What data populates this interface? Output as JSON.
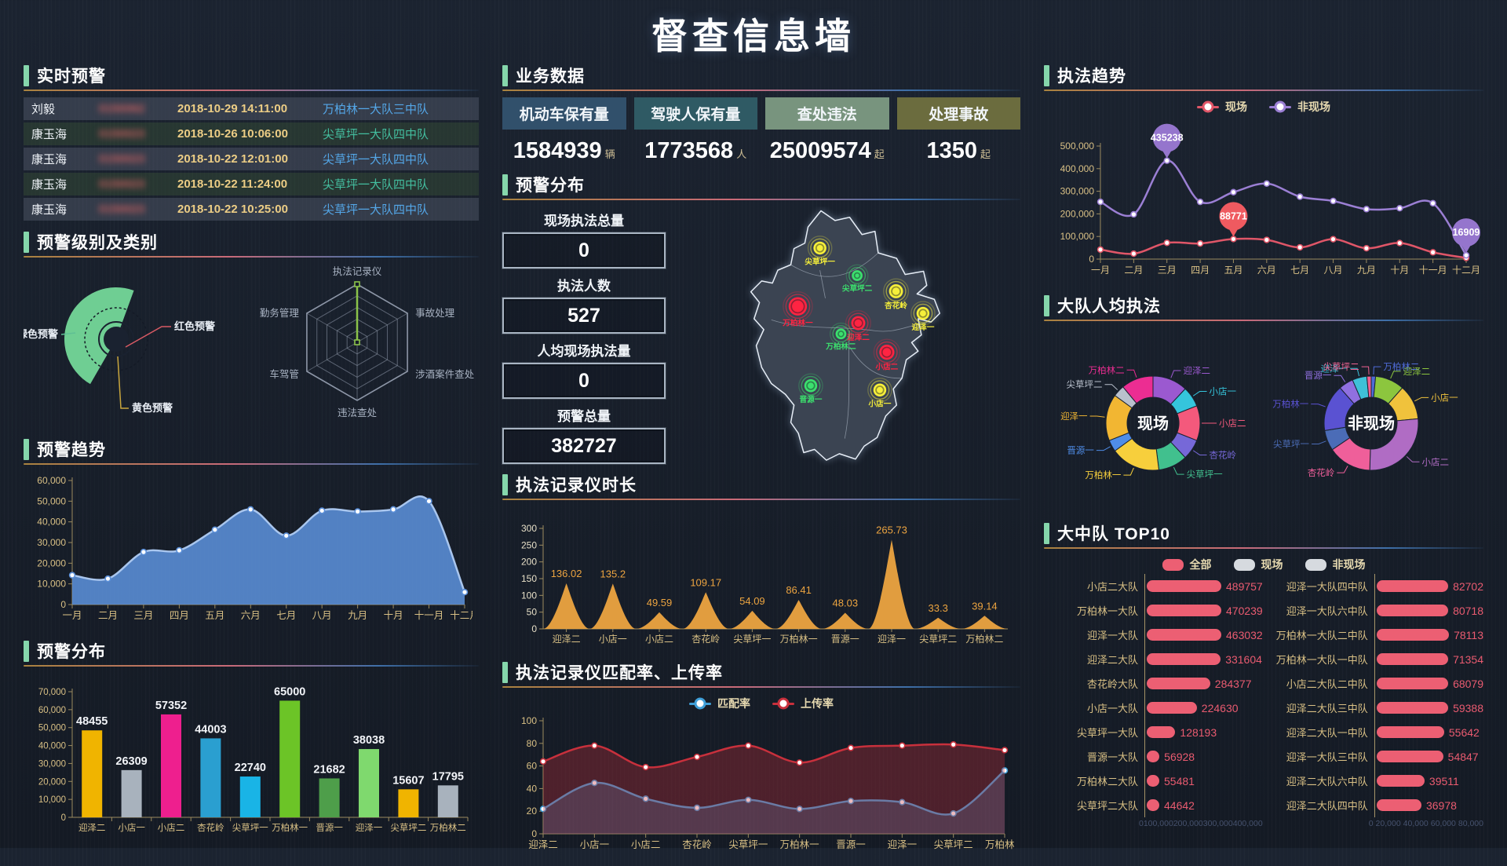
{
  "title": "督查信息墙",
  "realtime": {
    "title": "实时预警",
    "rows": [
      {
        "name": "刘毅",
        "id": "0150062",
        "time": "2018-10-29 14:11:00",
        "dept": "万柏林一大队三中队",
        "dept_color": "#54a7e8"
      },
      {
        "name": "康玉海",
        "id": "0150023",
        "time": "2018-10-26 10:06:00",
        "dept": "尖草坪一大队四中队",
        "dept_color": "#44bfa0"
      },
      {
        "name": "康玉海",
        "id": "0150023",
        "time": "2018-10-22 12:01:00",
        "dept": "尖草坪一大队四中队",
        "dept_color": "#54a7e8"
      },
      {
        "name": "康玉海",
        "id": "0150023",
        "time": "2018-10-22 11:24:00",
        "dept": "尖草坪一大队四中队",
        "dept_color": "#44bfa0"
      },
      {
        "name": "康玉海",
        "id": "0150023",
        "time": "2018-10-22 10:25:00",
        "dept": "尖草坪一大队四中队",
        "dept_color": "#54a7e8"
      }
    ]
  },
  "levels": {
    "title": "预警级别及类别"
  },
  "trend": {
    "title": "预警趋势"
  },
  "dist_bar": {
    "title": "预警分布"
  },
  "business": {
    "title": "业务数据",
    "cards": [
      {
        "label": "机动车保有量",
        "value": "1584939",
        "unit": "辆",
        "color": "#31506b"
      },
      {
        "label": "驾驶人保有量",
        "value": "1773568",
        "unit": "人",
        "color": "#2f5a64"
      },
      {
        "label": "查处违法",
        "value": "25009574",
        "unit": "起",
        "color": "#78947e"
      },
      {
        "label": "处理事故",
        "value": "1350",
        "unit": "起",
        "color": "#6b6c3e"
      }
    ]
  },
  "map_panel": {
    "title": "预警分布",
    "stats": [
      {
        "label": "现场执法总量",
        "value": "0"
      },
      {
        "label": "执法人数",
        "value": "527"
      },
      {
        "label": "人均现场执法量",
        "value": "0"
      },
      {
        "label": "预警总量",
        "value": "382727"
      }
    ],
    "markers": [
      {
        "label": "尖草坪一",
        "x": 150,
        "y": 77,
        "r": 12,
        "color": "#f6ef3a"
      },
      {
        "label": "尖草坪二",
        "x": 219,
        "y": 128,
        "r": 10,
        "color": "#3ce06e"
      },
      {
        "label": "杏花岭",
        "x": 291,
        "y": 157,
        "r": 13,
        "color": "#f6ef3a"
      },
      {
        "label": "迎泽一",
        "x": 341,
        "y": 198,
        "r": 12,
        "color": "#f6ef3a"
      },
      {
        "label": "万柏林一",
        "x": 109,
        "y": 185,
        "r": 17,
        "color": "#ff2442"
      },
      {
        "label": "迎泽二",
        "x": 221,
        "y": 216,
        "r": 13,
        "color": "#ff2442"
      },
      {
        "label": "万柏林二",
        "x": 189,
        "y": 236,
        "r": 10,
        "color": "#3ce06e"
      },
      {
        "label": "小店二",
        "x": 274,
        "y": 270,
        "r": 14,
        "color": "#ff2442"
      },
      {
        "label": "晋源一",
        "x": 133,
        "y": 332,
        "r": 12,
        "color": "#3ce06e"
      },
      {
        "label": "小店一",
        "x": 261,
        "y": 340,
        "r": 12,
        "color": "#f6ef3a"
      }
    ]
  },
  "recorder": {
    "title": "执法记录仪时长"
  },
  "rates": {
    "title": "执法记录仪匹配率、上传率"
  },
  "enforce": {
    "title": "执法趋势"
  },
  "per_capita": {
    "title": "大队人均执法"
  },
  "top10": {
    "title": "大中队 TOP10",
    "legend": [
      {
        "label": "全部",
        "color": "#ec5f73"
      },
      {
        "label": "现场",
        "color": "#d6dadf"
      },
      {
        "label": "非现场",
        "color": "#d6dadf"
      }
    ]
  },
  "chart_data": [
    {
      "id": "warning_level_pie",
      "type": "pie",
      "title": "预警级别",
      "slices": [
        {
          "label": "绿色预警",
          "value": 97,
          "color": "#6fce93",
          "leader": "#5fbf95"
        },
        {
          "label": "红色预警",
          "value": 1,
          "color": "#e05b66",
          "leader": "#d85a64"
        },
        {
          "label": "黄色预警",
          "value": 2,
          "color": "#d8b23c",
          "leader": "#c9a63d"
        }
      ]
    },
    {
      "id": "warning_radar",
      "type": "radar",
      "levels": 5,
      "categories": [
        "执法记录仪",
        "事故处理",
        "涉酒案件查处",
        "违法查处",
        "车驾管",
        "勤务管理"
      ],
      "series": [
        {
          "name": "预警类别",
          "values": [
            5,
            0,
            0,
            0,
            0,
            0
          ],
          "color": "#8bc34a"
        }
      ]
    },
    {
      "id": "warning_trend",
      "type": "area",
      "title": "预警趋势",
      "categories": [
        "一月",
        "二月",
        "三月",
        "四月",
        "五月",
        "六月",
        "七月",
        "八月",
        "九月",
        "十月",
        "十一月",
        "十二月"
      ],
      "values": [
        14200,
        12500,
        25400,
        26200,
        36200,
        46000,
        33300,
        45400,
        45000,
        46000,
        50000,
        6000
      ],
      "color": "#5b8fd8",
      "lineColor": "#a9c6ee",
      "ylim": [
        0,
        60000
      ],
      "ystep": 10000
    },
    {
      "id": "warning_dist",
      "type": "bar",
      "title": "预警分布",
      "categories": [
        "迎泽二",
        "小店一",
        "小店二",
        "杏花岭",
        "尖草坪一",
        "万柏林一",
        "晋源一",
        "迎泽一",
        "尖草坪二",
        "万柏林二"
      ],
      "values": [
        48455,
        26309,
        57352,
        44003,
        22740,
        65000,
        21682,
        38038,
        15607,
        17795
      ],
      "colors": [
        "#f0b400",
        "#a8b2bd",
        "#ee1f8e",
        "#2a9fd0",
        "#19b4e6",
        "#6cc427",
        "#4e9e4a",
        "#7fd96e",
        "#f0b400",
        "#a8b2bd"
      ],
      "ylim": [
        0,
        70000
      ],
      "ystep": 10000
    },
    {
      "id": "recorder_duration",
      "type": "area",
      "subtype": "peaks",
      "title": "执法记录仪时长",
      "categories": [
        "迎泽二",
        "小店一",
        "小店二",
        "杏花岭",
        "尖草坪一",
        "万柏林一",
        "晋源一",
        "迎泽一",
        "尖草坪二",
        "万柏林二"
      ],
      "values": [
        136.02,
        135.2,
        49.59,
        109.17,
        54.09,
        86.41,
        48.03,
        265.73,
        33.3,
        39.14
      ],
      "color": "#eca440",
      "ylim": [
        0,
        300
      ],
      "ystep": 50
    },
    {
      "id": "recorder_rates",
      "type": "line",
      "title": "执法记录仪匹配率、上传率",
      "categories": [
        "迎泽二",
        "小店一",
        "小店二",
        "杏花岭",
        "尖草坪一",
        "万柏林一",
        "晋源一",
        "迎泽一",
        "尖草坪二",
        "万柏林二"
      ],
      "series": [
        {
          "name": "匹配率",
          "color": "#3f9fd8",
          "areaOpacity": 0.28,
          "values": [
            22,
            45,
            31,
            23,
            30,
            22,
            29,
            28,
            18,
            56
          ]
        },
        {
          "name": "上传率",
          "color": "#c8303c",
          "areaOpacity": 0.32,
          "values": [
            64,
            78,
            59,
            68,
            78,
            63,
            76,
            78,
            79,
            74
          ]
        }
      ],
      "ylim": [
        0,
        100
      ],
      "ystep": 20
    },
    {
      "id": "enforce_trend",
      "type": "line",
      "title": "执法趋势",
      "categories": [
        "一月",
        "二月",
        "三月",
        "四月",
        "五月",
        "六月",
        "七月",
        "八月",
        "九月",
        "十月",
        "十一月",
        "十二月"
      ],
      "series": [
        {
          "name": "现场",
          "color": "#e05668",
          "balloon": "#ef5a60",
          "values": [
            42000,
            24000,
            72000,
            69000,
            88771,
            85000,
            52000,
            88000,
            48000,
            71000,
            30000,
            5000
          ],
          "balloons": [
            {
              "index": 4,
              "label": "88771"
            }
          ]
        },
        {
          "name": "非现场",
          "color": "#9b7fd4",
          "balloon": "#9575cd",
          "values": [
            253000,
            198000,
            435238,
            253000,
            296000,
            334000,
            276000,
            257000,
            221000,
            225000,
            247000,
            16909
          ],
          "balloons": [
            {
              "index": 2,
              "label": "435238"
            },
            {
              "index": 11,
              "label": "16909"
            }
          ]
        }
      ],
      "ylim": [
        0,
        500000
      ],
      "ystep": 100000
    },
    {
      "id": "donut_onsite",
      "type": "pie",
      "center": "现场",
      "segments": [
        {
          "label": "迎泽二",
          "value": 12,
          "color": "#9b59d0"
        },
        {
          "label": "小店一",
          "value": 7,
          "color": "#35c5dc"
        },
        {
          "label": "小店二",
          "value": 12,
          "color": "#f4597c"
        },
        {
          "label": "杏花岭",
          "value": 7,
          "color": "#7668d8"
        },
        {
          "label": "尖草坪一",
          "value": 10,
          "color": "#41c08e"
        },
        {
          "label": "万柏林一",
          "value": 17,
          "color": "#f7cf3c"
        },
        {
          "label": "晋源一",
          "value": 4,
          "color": "#4f8de8"
        },
        {
          "label": "迎泽一",
          "value": 16,
          "color": "#f2b632"
        },
        {
          "label": "尖草坪二",
          "value": 4,
          "color": "#b9c0cc"
        },
        {
          "label": "万柏林二",
          "value": 11,
          "color": "#ec2d92"
        }
      ]
    },
    {
      "id": "donut_offsite",
      "type": "pie",
      "center": "非现场",
      "segments": [
        {
          "label": "万柏林二",
          "value": 1.5,
          "color": "#4f6bd8"
        },
        {
          "label": "迎泽二",
          "value": 10,
          "color": "#8cc63e"
        },
        {
          "label": "小店一",
          "value": 12,
          "color": "#f0c23c"
        },
        {
          "label": "小店二",
          "value": 27,
          "color": "#b06cc4"
        },
        {
          "label": "杏花岭",
          "value": 15,
          "color": "#ef5f9a"
        },
        {
          "label": "尖草坪一",
          "value": 7,
          "color": "#4b6cb7"
        },
        {
          "label": "万柏林一",
          "value": 16,
          "color": "#5a52d2"
        },
        {
          "label": "晋源一",
          "value": 5,
          "color": "#9070e0"
        },
        {
          "label": "迎泽一",
          "value": 5,
          "color": "#3fc0d8"
        },
        {
          "label": "尖草坪二",
          "value": 1.5,
          "color": "#f06292"
        }
      ]
    },
    {
      "id": "top10_dadui",
      "type": "bar",
      "orientation": "horizontal",
      "color": "#ec5f73",
      "categories": [
        "小店二大队",
        "万柏林一大队",
        "迎泽一大队",
        "迎泽二大队",
        "杏花岭大队",
        "小店一大队",
        "尖草坪一大队",
        "晋源一大队",
        "万柏林二大队",
        "尖草坪二大队"
      ],
      "values": [
        489757,
        470239,
        463032,
        331604,
        284377,
        224630,
        128193,
        56928,
        55481,
        44642
      ],
      "xlim": [
        0,
        520000
      ],
      "xticks": [
        "0",
        "100,000",
        "200,000",
        "300,000",
        "400,000"
      ]
    },
    {
      "id": "top10_zhongdui",
      "type": "bar",
      "orientation": "horizontal",
      "color": "#ec5f73",
      "categories": [
        "迎泽一大队四中队",
        "迎泽一大队六中队",
        "万柏林一大队二中队",
        "万柏林一大队一中队",
        "小店二大队二中队",
        "迎泽二大队三中队",
        "迎泽二大队一中队",
        "迎泽一大队三中队",
        "迎泽二大队六中队",
        "迎泽二大队四中队"
      ],
      "values": [
        82702,
        80718,
        78113,
        71354,
        68079,
        59388,
        55642,
        54847,
        39511,
        36978
      ],
      "xlim": [
        0,
        88000
      ],
      "xticks": [
        "0",
        "20,000",
        "40,000",
        "60,000",
        "80,000"
      ]
    }
  ]
}
